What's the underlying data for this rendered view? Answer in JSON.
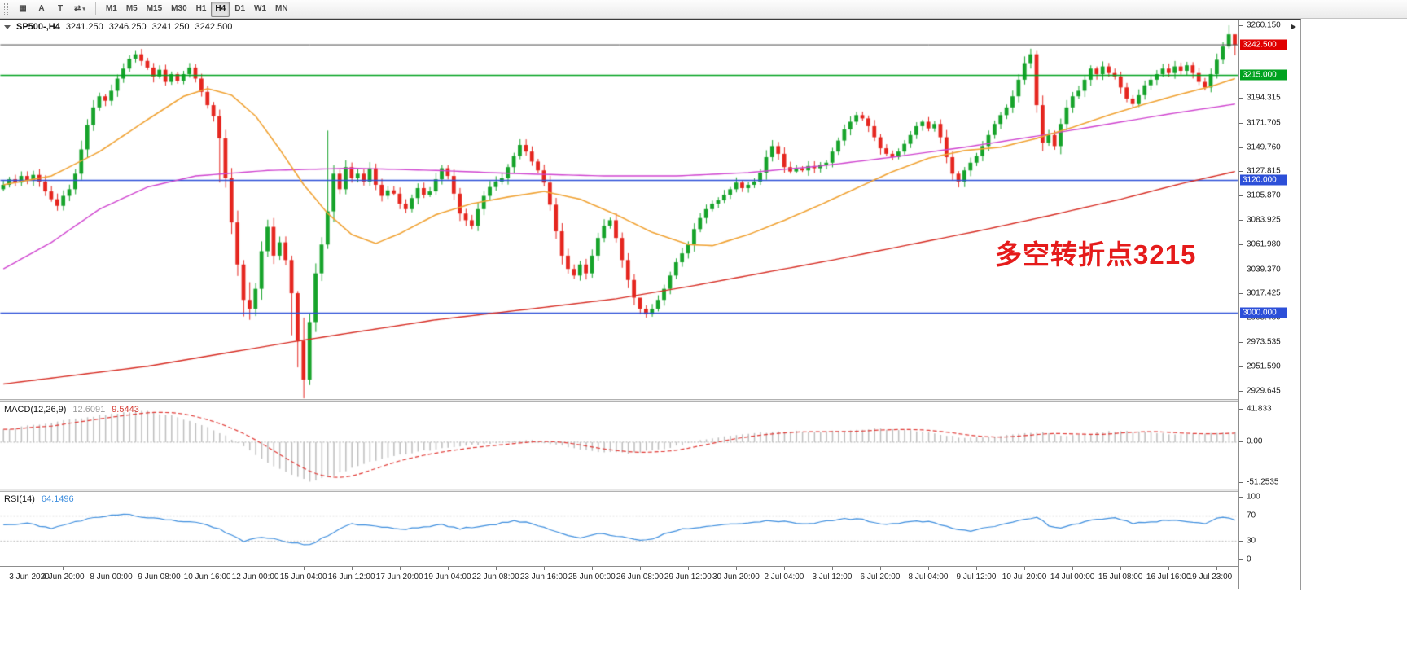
{
  "toolbar": {
    "tools": [
      {
        "name": "windows-icon",
        "glyph": "▦"
      },
      {
        "name": "cursor-tool",
        "glyph": "A"
      },
      {
        "name": "text-tool",
        "glyph": "T"
      },
      {
        "name": "line-type-tool",
        "glyph": "⇄",
        "has_caret": true
      }
    ],
    "timeframes": [
      "M1",
      "M5",
      "M15",
      "M30",
      "H1",
      "H4",
      "D1",
      "W1",
      "MN"
    ],
    "active_timeframe": "H4"
  },
  "chart": {
    "symbol_header": "SP500-,H4",
    "ohlc": {
      "open": "3241.250",
      "high": "3246.250",
      "low": "3241.250",
      "close": "3242.500"
    },
    "annotation": {
      "text": "多空转折点3215"
    },
    "bid_line": {
      "price": 3242.5
    },
    "levels": [
      {
        "price": 3215.0,
        "color_key": "level_green"
      },
      {
        "price": 3120.0,
        "color_key": "level_blue"
      },
      {
        "price": 3000.0,
        "color_key": "level_blue"
      }
    ],
    "price_axis": {
      "ticks": [
        {
          "label": "3260.150",
          "price": 3260.15
        },
        {
          "label": "3194.315",
          "price": 3194.315
        },
        {
          "label": "3171.705",
          "price": 3171.705
        },
        {
          "label": "3149.760",
          "price": 3149.76
        },
        {
          "label": "3127.815",
          "price": 3127.815
        },
        {
          "label": "3105.870",
          "price": 3105.87
        },
        {
          "label": "3083.925",
          "price": 3083.925
        },
        {
          "label": "3061.980",
          "price": 3061.98
        },
        {
          "label": "3039.370",
          "price": 3039.37
        },
        {
          "label": "3017.425",
          "price": 3017.425
        },
        {
          "label": "2995.480",
          "price": 2995.48
        },
        {
          "label": "2973.535",
          "price": 2973.535
        },
        {
          "label": "2951.590",
          "price": 2951.59
        },
        {
          "label": "2929.645",
          "price": 2929.645
        }
      ],
      "badges": [
        {
          "label": "3242.500",
          "price": 3242.5,
          "color_key": "badge_red"
        },
        {
          "label": "3215.000",
          "price": 3215.0,
          "color_key": "badge_green"
        },
        {
          "label": "3120.000",
          "price": 3120.0,
          "color_key": "badge_blue"
        },
        {
          "label": "3000.000",
          "price": 3000.0,
          "color_key": "badge_blue"
        }
      ]
    },
    "time_axis": {
      "first_index": 2,
      "step": 8,
      "labels": [
        "3 Jun 2020",
        "4 Jun 20:00",
        "8 Jun 00:00",
        "9 Jun 08:00",
        "10 Jun 16:00",
        "12 Jun 00:00",
        "15 Jun 04:00",
        "16 Jun 12:00",
        "17 Jun 20:00",
        "19 Jun 04:00",
        "22 Jun 08:00",
        "23 Jun 16:00",
        "25 Jun 00:00",
        "26 Jun 08:00",
        "29 Jun 12:00",
        "30 Jun 20:00",
        "2 Jul 04:00",
        "3 Jul 12:00",
        "6 Jul 20:00",
        "8 Jul 04:00",
        "9 Jul 12:00",
        "10 Jul 20:00",
        "14 Jul 00:00",
        "15 Jul 08:00",
        "16 Jul 16:00",
        "19 Jul 23:00"
      ]
    }
  },
  "macd": {
    "header": "MACD(12,26,9)",
    "value_main": "12.6091",
    "value_signal": "9.5443",
    "scale": {
      "top": {
        "label": "41.833",
        "value": 41.833
      },
      "zero": {
        "label": "0.00",
        "value": 0
      },
      "bottom": {
        "label": "-51.2535",
        "value": -51.2535
      }
    }
  },
  "rsi": {
    "header": "RSI(14)",
    "value": "64.1496",
    "scale_labels": [
      {
        "label": "100",
        "value": 100
      },
      {
        "label": "70",
        "value": 70
      },
      {
        "label": "30",
        "value": 30
      },
      {
        "label": "0",
        "value": 0
      }
    ],
    "levels": [
      70,
      30
    ]
  },
  "colors": {
    "up": "#16a32a",
    "down": "#e5261f",
    "ma_fast": "#f0a233",
    "ma_mid": "#cf43cf",
    "ma_slow": "#d62b22",
    "level_green": "#00a21f",
    "level_blue": "#2c4fd8",
    "bid_line": "#4a4a4a",
    "macd_hist": "#bdbdbd",
    "macd_signal": "#e03a36",
    "rsi_line": "#3e8ede",
    "badge_red": "#e00000",
    "badge_green": "#00a21f",
    "badge_blue": "#2c4fd8",
    "annotation": "#e51b1b"
  },
  "chart_data": {
    "type": "candlestick",
    "symbol": "SP500-",
    "timeframe": "H4",
    "price_range": [
      2922,
      3265
    ],
    "first_open": 3112,
    "closes": [
      3116,
      3121,
      3118,
      3124,
      3120,
      3125,
      3119,
      3110,
      3103,
      3097,
      3106,
      3112,
      3126,
      3148,
      3170,
      3186,
      3196,
      3192,
      3201,
      3212,
      3221,
      3230,
      3234,
      3228,
      3222,
      3214,
      3220,
      3209,
      3216,
      3210,
      3216,
      3222,
      3212,
      3200,
      3188,
      3178,
      3158,
      3122,
      3082,
      3044,
      3012,
      3004,
      3022,
      3056,
      3078,
      3052,
      3064,
      3048,
      3018,
      2975,
      2940,
      2992,
      3036,
      3062,
      3092,
      3126,
      3112,
      3132,
      3122,
      3126,
      3119,
      3131,
      3116,
      3106,
      3111,
      3108,
      3099,
      3094,
      3104,
      3113,
      3107,
      3110,
      3121,
      3131,
      3124,
      3108,
      3090,
      3084,
      3079,
      3094,
      3106,
      3114,
      3119,
      3122,
      3132,
      3142,
      3152,
      3146,
      3137,
      3129,
      3118,
      3098,
      3074,
      3052,
      3040,
      3034,
      3044,
      3036,
      3052,
      3068,
      3079,
      3084,
      3068,
      3048,
      3030,
      3014,
      3004,
      2999,
      3004,
      3012,
      3022,
      3034,
      3046,
      3054,
      3062,
      3076,
      3086,
      3094,
      3099,
      3102,
      3107,
      3112,
      3118,
      3113,
      3116,
      3119,
      3127,
      3141,
      3151,
      3144,
      3132,
      3128,
      3131,
      3129,
      3133,
      3131,
      3134,
      3136,
      3146,
      3156,
      3166,
      3173,
      3179,
      3176,
      3169,
      3159,
      3149,
      3144,
      3141,
      3146,
      3153,
      3161,
      3169,
      3173,
      3167,
      3171,
      3159,
      3141,
      3126,
      3119,
      3129,
      3136,
      3142,
      3151,
      3161,
      3171,
      3179,
      3186,
      3196,
      3211,
      3226,
      3234,
      3188,
      3154,
      3161,
      3151,
      3171,
      3186,
      3196,
      3201,
      3211,
      3221,
      3216,
      3223,
      3217,
      3214,
      3204,
      3194,
      3189,
      3197,
      3206,
      3211,
      3216,
      3221,
      3217,
      3223,
      3219,
      3224,
      3217,
      3209,
      3204,
      3216,
      3229,
      3241,
      3252,
      3242.5
    ],
    "wick_overrides": {
      "36": [
        3118,
        3184
      ],
      "40": [
        2997,
        3048
      ],
      "41": [
        2994,
        3028
      ],
      "48": [
        2980,
        3052
      ],
      "49": [
        2951,
        3020
      ],
      "50": [
        2923,
        2996
      ],
      "51": [
        2935,
        3000
      ],
      "54": [
        3058,
        3165
      ],
      "106": [
        2999,
        3012
      ],
      "107": [
        2996,
        3007
      ],
      "171": [
        3221,
        3239
      ],
      "172": [
        3181,
        3237
      ],
      "204": [
        3239,
        3260.2
      ],
      "205": [
        3233,
        3251
      ]
    },
    "ma_slow_red": [
      [
        0,
        2936
      ],
      [
        24,
        2952
      ],
      [
        48,
        2974
      ],
      [
        72,
        2994
      ],
      [
        88,
        3004
      ],
      [
        102,
        3013
      ],
      [
        114,
        3024
      ],
      [
        126,
        3036
      ],
      [
        138,
        3048
      ],
      [
        150,
        3061
      ],
      [
        162,
        3074
      ],
      [
        174,
        3088
      ],
      [
        186,
        3103
      ],
      [
        196,
        3117
      ],
      [
        205,
        3128
      ]
    ],
    "ma_mid_magenta": [
      [
        0,
        3040
      ],
      [
        8,
        3064
      ],
      [
        16,
        3094
      ],
      [
        24,
        3114
      ],
      [
        32,
        3124
      ],
      [
        44,
        3129
      ],
      [
        58,
        3131
      ],
      [
        72,
        3129
      ],
      [
        86,
        3126
      ],
      [
        100,
        3124
      ],
      [
        112,
        3124
      ],
      [
        124,
        3127
      ],
      [
        136,
        3133
      ],
      [
        148,
        3141
      ],
      [
        160,
        3150
      ],
      [
        172,
        3160
      ],
      [
        184,
        3171
      ],
      [
        194,
        3180
      ],
      [
        205,
        3189
      ]
    ],
    "ma_fast_orange": [
      [
        0,
        3116
      ],
      [
        8,
        3124
      ],
      [
        16,
        3146
      ],
      [
        24,
        3175
      ],
      [
        30,
        3196
      ],
      [
        34,
        3203
      ],
      [
        38,
        3197
      ],
      [
        42,
        3178
      ],
      [
        46,
        3148
      ],
      [
        50,
        3116
      ],
      [
        54,
        3090
      ],
      [
        58,
        3071
      ],
      [
        62,
        3063
      ],
      [
        66,
        3072
      ],
      [
        72,
        3089
      ],
      [
        78,
        3099
      ],
      [
        84,
        3105
      ],
      [
        90,
        3110
      ],
      [
        96,
        3103
      ],
      [
        102,
        3089
      ],
      [
        108,
        3073
      ],
      [
        114,
        3062
      ],
      [
        118,
        3061
      ],
      [
        124,
        3071
      ],
      [
        130,
        3084
      ],
      [
        136,
        3098
      ],
      [
        142,
        3113
      ],
      [
        148,
        3128
      ],
      [
        154,
        3140
      ],
      [
        160,
        3147
      ],
      [
        166,
        3150
      ],
      [
        172,
        3158
      ],
      [
        178,
        3168
      ],
      [
        184,
        3179
      ],
      [
        190,
        3189
      ],
      [
        196,
        3198
      ],
      [
        201,
        3205
      ],
      [
        205,
        3212
      ]
    ],
    "macd_points": [
      [
        0,
        16
      ],
      [
        6,
        23
      ],
      [
        12,
        30
      ],
      [
        18,
        36
      ],
      [
        23,
        40
      ],
      [
        28,
        34
      ],
      [
        33,
        22
      ],
      [
        37,
        8
      ],
      [
        40,
        -6
      ],
      [
        44,
        -26
      ],
      [
        48,
        -41
      ],
      [
        51,
        -50
      ],
      [
        55,
        -42
      ],
      [
        59,
        -30
      ],
      [
        64,
        -19
      ],
      [
        69,
        -12
      ],
      [
        74,
        -7
      ],
      [
        79,
        -3
      ],
      [
        84,
        1
      ],
      [
        88,
        2
      ],
      [
        92,
        -3
      ],
      [
        96,
        -9
      ],
      [
        100,
        -13
      ],
      [
        104,
        -14
      ],
      [
        108,
        -11
      ],
      [
        112,
        -5
      ],
      [
        116,
        2
      ],
      [
        121,
        8
      ],
      [
        126,
        12
      ],
      [
        131,
        14
      ],
      [
        136,
        13
      ],
      [
        141,
        15
      ],
      [
        146,
        17
      ],
      [
        151,
        15
      ],
      [
        156,
        10
      ],
      [
        160,
        5
      ],
      [
        164,
        7
      ],
      [
        169,
        11
      ],
      [
        173,
        12
      ],
      [
        177,
        8
      ],
      [
        181,
        11
      ],
      [
        185,
        14
      ],
      [
        189,
        13
      ],
      [
        193,
        11
      ],
      [
        197,
        10
      ],
      [
        201,
        12
      ],
      [
        205,
        12.6
      ]
    ],
    "rsi_points": [
      [
        0,
        55
      ],
      [
        4,
        58
      ],
      [
        8,
        51
      ],
      [
        12,
        61
      ],
      [
        16,
        69
      ],
      [
        20,
        74
      ],
      [
        24,
        67
      ],
      [
        28,
        63
      ],
      [
        32,
        61
      ],
      [
        36,
        49
      ],
      [
        40,
        29
      ],
      [
        43,
        37
      ],
      [
        46,
        31
      ],
      [
        49,
        26
      ],
      [
        51,
        24
      ],
      [
        53,
        34
      ],
      [
        56,
        49
      ],
      [
        58,
        58
      ],
      [
        61,
        54
      ],
      [
        64,
        51
      ],
      [
        67,
        49
      ],
      [
        70,
        53
      ],
      [
        73,
        56
      ],
      [
        76,
        50
      ],
      [
        79,
        53
      ],
      [
        82,
        57
      ],
      [
        85,
        63
      ],
      [
        88,
        58
      ],
      [
        91,
        49
      ],
      [
        94,
        38
      ],
      [
        96,
        34
      ],
      [
        99,
        43
      ],
      [
        102,
        38
      ],
      [
        105,
        33
      ],
      [
        107,
        31
      ],
      [
        110,
        41
      ],
      [
        113,
        49
      ],
      [
        116,
        53
      ],
      [
        119,
        56
      ],
      [
        122,
        58
      ],
      [
        125,
        61
      ],
      [
        128,
        63
      ],
      [
        131,
        60
      ],
      [
        134,
        58
      ],
      [
        137,
        62
      ],
      [
        140,
        66
      ],
      [
        143,
        64
      ],
      [
        146,
        57
      ],
      [
        149,
        59
      ],
      [
        152,
        62
      ],
      [
        155,
        60
      ],
      [
        158,
        49
      ],
      [
        161,
        46
      ],
      [
        164,
        52
      ],
      [
        167,
        58
      ],
      [
        170,
        64
      ],
      [
        172,
        68
      ],
      [
        174,
        55
      ],
      [
        176,
        51
      ],
      [
        179,
        58
      ],
      [
        182,
        65
      ],
      [
        185,
        67
      ],
      [
        188,
        58
      ],
      [
        191,
        61
      ],
      [
        194,
        63
      ],
      [
        197,
        62
      ],
      [
        200,
        58
      ],
      [
        202,
        66
      ],
      [
        204,
        68
      ],
      [
        205,
        64.1
      ]
    ]
  }
}
